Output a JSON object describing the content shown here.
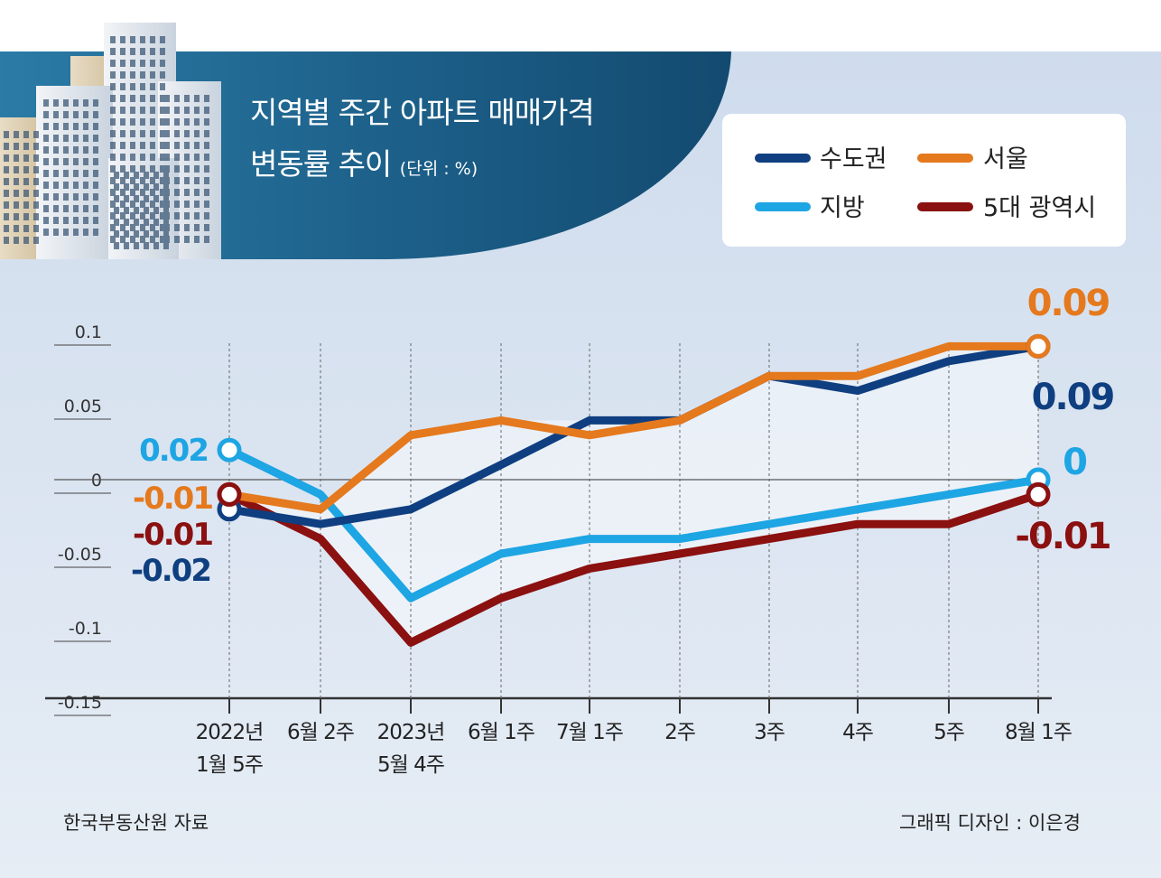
{
  "header": {
    "title_line1": "지역별 주간 아파트 매매가격",
    "title_line2": "변동률 추이",
    "unit": "(단위 : %)"
  },
  "colors": {
    "capital": "#0f3f80",
    "seoul": "#e5791d",
    "local": "#1ea5e3",
    "metro5": "#8b1010",
    "background": "#dde6f1",
    "banner": "#1b5d86"
  },
  "chart_data": {
    "type": "line",
    "x": [
      "2022년\n1월 5주",
      "6월 2주",
      "2023년\n5월 4주",
      "6월 1주",
      "7월 1주",
      "2주",
      "3주",
      "4주",
      "5주",
      "8월 1주"
    ],
    "ylim": [
      -0.15,
      0.1
    ],
    "yticks": [
      0.1,
      0.05,
      0,
      -0.05,
      -0.1,
      -0.15
    ],
    "ytick_labels": [
      "0.1",
      "0.05",
      "0",
      "-0.05",
      "-0.1",
      "-0.15"
    ],
    "series": [
      {
        "name": "수도권",
        "color": "#0f3f80",
        "values": [
          -0.02,
          -0.03,
          -0.02,
          0.01,
          0.04,
          0.04,
          0.07,
          0.06,
          0.08,
          0.09
        ]
      },
      {
        "name": "서울",
        "color": "#e5791d",
        "values": [
          -0.01,
          -0.02,
          0.03,
          0.04,
          0.03,
          0.04,
          0.07,
          0.07,
          0.09,
          0.09
        ]
      },
      {
        "name": "지방",
        "color": "#1ea5e3",
        "values": [
          0.02,
          -0.01,
          -0.08,
          -0.05,
          -0.04,
          -0.04,
          -0.03,
          -0.02,
          -0.01,
          0
        ]
      },
      {
        "name": "5대 광역시",
        "color": "#8b1010",
        "values": [
          -0.01,
          -0.04,
          -0.11,
          -0.08,
          -0.06,
          -0.05,
          -0.04,
          -0.03,
          -0.03,
          -0.01
        ]
      }
    ],
    "start_labels": {
      "local": "0.02",
      "seoul": "-0.01",
      "metro5": "-0.01",
      "capital": "-0.02"
    },
    "end_labels": {
      "seoul": "0.09",
      "capital": "0.09",
      "local": "0",
      "metro5": "-0.01"
    }
  },
  "legend": {
    "capital": "수도권",
    "seoul": "서울",
    "local": "지방",
    "metro5": "5대 광역시"
  },
  "footer": {
    "source": "한국부동산원 자료",
    "credit": "그래픽 디자인 : 이은경"
  }
}
